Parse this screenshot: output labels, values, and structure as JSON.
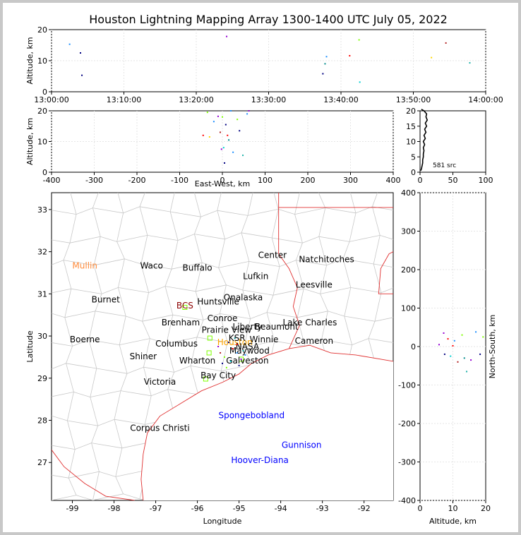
{
  "chart_data": [
    {
      "type": "scatter",
      "panel": "time-altitude",
      "title": "Houston Lightning Mapping Array 1300-1400 UTC July 05, 2022",
      "xlabel": "",
      "ylabel": "Altitude, km",
      "x_ticks": [
        "13:00:00",
        "13:10:00",
        "13:20:00",
        "13:30:00",
        "13:40:00",
        "13:50:00",
        "14:00:00"
      ],
      "xlim_minutes": [
        0,
        60
      ],
      "ylim": [
        0,
        20
      ],
      "y_ticks": [
        0,
        10,
        20
      ],
      "points": [
        {
          "t": 2.5,
          "alt": 15.3,
          "color": "#1e90ff"
        },
        {
          "t": 4.0,
          "alt": 12.5,
          "color": "#000080"
        },
        {
          "t": 4.2,
          "alt": 5.3,
          "color": "#000080"
        },
        {
          "t": 24.2,
          "alt": 17.8,
          "color": "#9400d3"
        },
        {
          "t": 37.5,
          "alt": 5.8,
          "color": "#000080"
        },
        {
          "t": 37.8,
          "alt": 9.0,
          "color": "#008b8b"
        },
        {
          "t": 38.0,
          "alt": 11.3,
          "color": "#1e90ff"
        },
        {
          "t": 41.2,
          "alt": 11.6,
          "color": "#ff0000"
        },
        {
          "t": 42.5,
          "alt": 16.7,
          "color": "#7fff00"
        },
        {
          "t": 42.6,
          "alt": 3.1,
          "color": "#00ced1"
        },
        {
          "t": 54.5,
          "alt": 15.7,
          "color": "#b22222"
        },
        {
          "t": 57.8,
          "alt": 9.3,
          "color": "#20b2aa"
        },
        {
          "t": 52.5,
          "alt": 11.0,
          "color": "#ffd700"
        }
      ]
    },
    {
      "type": "scatter",
      "panel": "east-west-altitude",
      "xlabel": "East-West, km",
      "ylabel": "Altitude, km",
      "xlim": [
        -400,
        400
      ],
      "ylim": [
        0,
        20
      ],
      "x_ticks": [
        -400,
        -300,
        -200,
        -100,
        0,
        100,
        200,
        300,
        400
      ],
      "y_ticks": [
        0,
        10,
        20
      ],
      "points": [
        {
          "x": -20,
          "y": 16.5,
          "color": "#1e90ff"
        },
        {
          "x": -10,
          "y": 18.2,
          "color": "#9400d3"
        },
        {
          "x": 0,
          "y": 18.0,
          "color": "#7fff00"
        },
        {
          "x": 8,
          "y": 15.5,
          "color": "#000080"
        },
        {
          "x": 12,
          "y": 12.0,
          "color": "#ff0000"
        },
        {
          "x": -5,
          "y": 13.0,
          "color": "#b22222"
        },
        {
          "x": 15,
          "y": 10.5,
          "color": "#008b8b"
        },
        {
          "x": 3,
          "y": 8.0,
          "color": "#00ced1"
        },
        {
          "x": -2,
          "y": 7.5,
          "color": "#9400d3"
        },
        {
          "x": 25,
          "y": 6.5,
          "color": "#1e90ff"
        },
        {
          "x": 48,
          "y": 5.5,
          "color": "#20b2aa"
        },
        {
          "x": 35,
          "y": 17.2,
          "color": "#7fff00"
        },
        {
          "x": 58,
          "y": 19.0,
          "color": "#1e90ff"
        },
        {
          "x": 62,
          "y": 20.0,
          "color": "#9400d3"
        },
        {
          "x": 40,
          "y": 13.5,
          "color": "#000080"
        },
        {
          "x": -30,
          "y": 11.5,
          "color": "#ffd700"
        },
        {
          "x": 5,
          "y": 3.0,
          "color": "#000080"
        },
        {
          "x": -45,
          "y": 12.0,
          "color": "#ff0000"
        },
        {
          "x": 20,
          "y": 20.0,
          "color": "#1e90ff"
        },
        {
          "x": -35,
          "y": 19.5,
          "color": "#7fff00"
        }
      ]
    },
    {
      "type": "line",
      "panel": "altitude-histogram",
      "xlabel": "",
      "annotation": "581 src",
      "xlim": [
        0,
        100
      ],
      "ylim": [
        0,
        20
      ],
      "x_ticks": [
        0,
        50,
        100
      ],
      "y_ticks": [
        0,
        5,
        10,
        15,
        20
      ],
      "profile": [
        {
          "alt": 0.5,
          "n": 1
        },
        {
          "alt": 1,
          "n": 2
        },
        {
          "alt": 2,
          "n": 3
        },
        {
          "alt": 3,
          "n": 4
        },
        {
          "alt": 4,
          "n": 4
        },
        {
          "alt": 5,
          "n": 5
        },
        {
          "alt": 6,
          "n": 5
        },
        {
          "alt": 7,
          "n": 6
        },
        {
          "alt": 8,
          "n": 5
        },
        {
          "alt": 9,
          "n": 7
        },
        {
          "alt": 10,
          "n": 5
        },
        {
          "alt": 11,
          "n": 8
        },
        {
          "alt": 12,
          "n": 6
        },
        {
          "alt": 13,
          "n": 9
        },
        {
          "alt": 14,
          "n": 7
        },
        {
          "alt": 15,
          "n": 10
        },
        {
          "alt": 16,
          "n": 8
        },
        {
          "alt": 17,
          "n": 11
        },
        {
          "alt": 18,
          "n": 9
        },
        {
          "alt": 19,
          "n": 10
        },
        {
          "alt": 20,
          "n": 6
        },
        {
          "alt": 20.5,
          "n": 2
        }
      ]
    },
    {
      "type": "scatter",
      "panel": "plan-view-map",
      "xlabel": "Longitude",
      "ylabel": "Latitude",
      "xlim": [
        -99.5,
        -91.3
      ],
      "ylim": [
        26.1,
        33.4
      ],
      "x_ticks": [
        -99,
        -98,
        -97,
        -96,
        -95,
        -94,
        -93,
        -92
      ],
      "y_ticks": [
        27,
        28,
        29,
        30,
        31,
        32,
        33
      ],
      "places": [
        {
          "name": "Mullin",
          "lon": -98.7,
          "lat": 31.6,
          "color": "#ff8c3c"
        },
        {
          "name": "Waco",
          "lon": -97.1,
          "lat": 31.6,
          "color": "#000000"
        },
        {
          "name": "Buffalo",
          "lon": -96.0,
          "lat": 31.55,
          "color": "#000000"
        },
        {
          "name": "Lufkin",
          "lon": -94.6,
          "lat": 31.35,
          "color": "#000000"
        },
        {
          "name": "Center",
          "lon": -94.2,
          "lat": 31.85,
          "color": "#000000"
        },
        {
          "name": "Natchitoches",
          "lon": -92.9,
          "lat": 31.75,
          "color": "#000000"
        },
        {
          "name": "Leesville",
          "lon": -93.2,
          "lat": 31.15,
          "color": "#000000"
        },
        {
          "name": "Burnet",
          "lon": -98.2,
          "lat": 30.8,
          "color": "#000000"
        },
        {
          "name": "Onalaska",
          "lon": -94.9,
          "lat": 30.85,
          "color": "#000000"
        },
        {
          "name": "Huntsville",
          "lon": -95.5,
          "lat": 30.75,
          "color": "#000000"
        },
        {
          "name": "BCS",
          "lon": -96.3,
          "lat": 30.65,
          "color": "#8b0000"
        },
        {
          "name": "Conroe",
          "lon": -95.4,
          "lat": 30.35,
          "color": "#000000"
        },
        {
          "name": "Brenham",
          "lon": -96.4,
          "lat": 30.25,
          "color": "#000000"
        },
        {
          "name": "Liberty",
          "lon": -94.8,
          "lat": 30.15,
          "color": "#000000"
        },
        {
          "name": "Beaumont",
          "lon": -94.1,
          "lat": 30.15,
          "color": "#000000"
        },
        {
          "name": "Lake Charles",
          "lon": -93.3,
          "lat": 30.25,
          "color": "#000000"
        },
        {
          "name": "Boerne",
          "lon": -98.7,
          "lat": 29.85,
          "color": "#000000"
        },
        {
          "name": "Columbus",
          "lon": -96.5,
          "lat": 29.75,
          "color": "#000000"
        },
        {
          "name": "Winnie",
          "lon": -94.4,
          "lat": 29.85,
          "color": "#000000"
        },
        {
          "name": "Cameron",
          "lon": -93.2,
          "lat": 29.82,
          "color": "#000000"
        },
        {
          "name": "Houston",
          "lon": -95.1,
          "lat": 29.78,
          "color": "#ffa500"
        },
        {
          "name": "Maywood",
          "lon": -94.75,
          "lat": 29.58,
          "color": "#000000"
        },
        {
          "name": "Shiner",
          "lon": -97.3,
          "lat": 29.45,
          "color": "#000000"
        },
        {
          "name": "Wharton",
          "lon": -96.0,
          "lat": 29.35,
          "color": "#000000"
        },
        {
          "name": "Galveston",
          "lon": -94.8,
          "lat": 29.35,
          "color": "#000000"
        },
        {
          "name": "Bay City",
          "lon": -95.5,
          "lat": 29.0,
          "color": "#000000"
        },
        {
          "name": "Victoria",
          "lon": -96.9,
          "lat": 28.85,
          "color": "#000000"
        },
        {
          "name": "Spongebobland",
          "lon": -94.7,
          "lat": 28.05,
          "color": "#0000ff"
        },
        {
          "name": "Corpus Christi",
          "lon": -96.9,
          "lat": 27.75,
          "color": "#000000"
        },
        {
          "name": "Gunnison",
          "lon": -93.5,
          "lat": 27.35,
          "color": "#0000ff"
        },
        {
          "name": "Hoover-Diana",
          "lon": -94.5,
          "lat": 26.99,
          "color": "#0000ff"
        }
      ],
      "overlapped_labels": [
        "Prairie View",
        "KSR",
        "NASA"
      ],
      "points": [
        {
          "lon": -95.25,
          "lat": 29.85,
          "color": "#000080"
        },
        {
          "lon": -95.15,
          "lat": 29.7,
          "color": "#ff0000"
        },
        {
          "lon": -95.05,
          "lat": 29.6,
          "color": "#1e90ff"
        },
        {
          "lon": -95.35,
          "lat": 29.5,
          "color": "#7fff00"
        },
        {
          "lon": -94.95,
          "lat": 29.45,
          "color": "#9400d3"
        },
        {
          "lon": -95.2,
          "lat": 29.4,
          "color": "#00ced1"
        },
        {
          "lon": -95.45,
          "lat": 29.6,
          "color": "#b22222"
        },
        {
          "lon": -95.1,
          "lat": 29.95,
          "color": "#008b8b"
        },
        {
          "lon": -95.0,
          "lat": 29.3,
          "color": "#000080"
        },
        {
          "lon": -94.85,
          "lat": 29.55,
          "color": "#1e90ff"
        },
        {
          "lon": -95.3,
          "lat": 29.25,
          "color": "#7fff00"
        },
        {
          "lon": -95.5,
          "lat": 29.75,
          "color": "#9400d3"
        },
        {
          "lon": -95.05,
          "lat": 29.8,
          "color": "#ff0000"
        },
        {
          "lon": -94.9,
          "lat": 29.65,
          "color": "#20b2aa"
        },
        {
          "lon": -95.4,
          "lat": 29.35,
          "color": "#000080"
        }
      ]
    },
    {
      "type": "scatter",
      "panel": "altitude-north-south",
      "xlabel": "Altitude, km",
      "ylabel": "North-South, km",
      "xlim": [
        0,
        20
      ],
      "ylim": [
        -400,
        400
      ],
      "x_ticks": [
        0,
        10,
        20
      ],
      "y_ticks": [
        -400,
        -300,
        -200,
        -100,
        0,
        100,
        200,
        300,
        400
      ],
      "points": [
        {
          "alt": 7.2,
          "ns": 35,
          "color": "#9400d3"
        },
        {
          "alt": 8.5,
          "ns": 20,
          "color": "#ff0000"
        },
        {
          "alt": 10.5,
          "ns": 15,
          "color": "#1e90ff"
        },
        {
          "alt": 12.8,
          "ns": 30,
          "color": "#7fff00"
        },
        {
          "alt": 7.5,
          "ns": -20,
          "color": "#000080"
        },
        {
          "alt": 9.3,
          "ns": -25,
          "color": "#00ced1"
        },
        {
          "alt": 11.5,
          "ns": -40,
          "color": "#b22222"
        },
        {
          "alt": 13.5,
          "ns": -30,
          "color": "#008b8b"
        },
        {
          "alt": 15.5,
          "ns": -35,
          "color": "#9400d3"
        },
        {
          "alt": 17.0,
          "ns": 38,
          "color": "#1e90ff"
        },
        {
          "alt": 18.3,
          "ns": -20,
          "color": "#000080"
        },
        {
          "alt": 19.2,
          "ns": 25,
          "color": "#7fff00"
        },
        {
          "alt": 10.0,
          "ns": 2,
          "color": "#ff0000"
        },
        {
          "alt": 14.2,
          "ns": -65,
          "color": "#20b2aa"
        },
        {
          "alt": 5.8,
          "ns": 5,
          "color": "#9400d3"
        }
      ]
    }
  ]
}
